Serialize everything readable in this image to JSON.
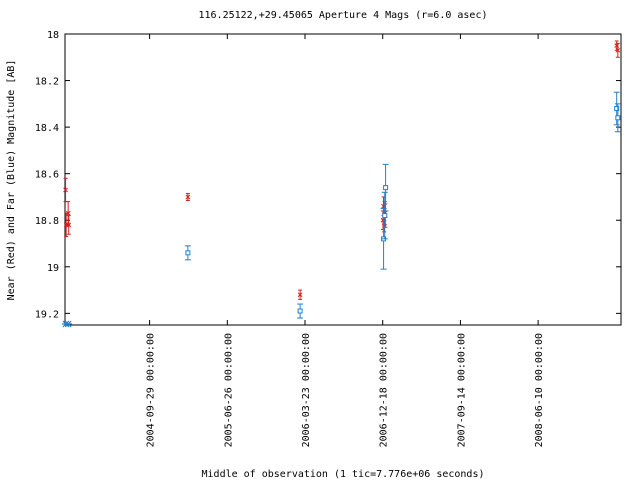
{
  "chart_data": {
    "type": "scatter",
    "title": "116.25122,+29.45065   Aperture 4 Mags (r=6.0 asec)",
    "xlabel": "Middle of observation (1 tic=7.776e+06 seconds)",
    "ylabel": "Near (Red) and Far (Blue) Magnitude [AB]",
    "ylim": [
      19.25,
      18.0
    ],
    "y_inverted": true,
    "yticks": [
      18,
      18.2,
      18.4,
      18.6,
      18.8,
      19,
      19.2
    ],
    "ytick_labels": [
      "18",
      "18.2",
      "18.4",
      "18.6",
      "18.8",
      "19",
      "19.2"
    ],
    "xlim": [
      "2003-12-10",
      "2009-03-25"
    ],
    "xticks": [
      "2004-09-29",
      "2005-06-26",
      "2006-03-23",
      "2006-12-18",
      "2007-09-14",
      "2008-06-10"
    ],
    "xtick_labels": [
      "2004-09-29 00:00:00",
      "2005-06-26 00:00:00",
      "2006-03-23 00:00:00",
      "2006-12-18 00:00:00",
      "2007-09-14 00:00:00",
      "2008-06-10 00:00:00"
    ],
    "grid": false,
    "colors": {
      "near": "#d42020",
      "far": "#2080d0",
      "farEdge": "#20a0a0"
    },
    "series": [
      {
        "key": "near",
        "marker": "x",
        "points": [
          {
            "x": "2003-12-12",
            "y": 18.67,
            "err": 0.05
          },
          {
            "x": "2003-12-14",
            "y": 18.82,
            "err": 0.05
          },
          {
            "x": "2003-12-21",
            "y": 18.77,
            "err": 0.05
          },
          {
            "x": "2003-12-23",
            "y": 18.82,
            "err": 0.04
          },
          {
            "x": "2005-02-09",
            "y": 18.7,
            "err": 0.015
          },
          {
            "x": "2006-03-06",
            "y": 19.12,
            "err": 0.02
          },
          {
            "x": "2006-12-19",
            "y": 18.8,
            "err": 0.04
          },
          {
            "x": "2006-12-21",
            "y": 18.74,
            "err": 0.04
          },
          {
            "x": "2006-12-23",
            "y": 18.81,
            "err": 0.04
          },
          {
            "x": "2006-12-25",
            "y": 18.77,
            "err": 0.05
          },
          {
            "x": "2006-12-27",
            "y": 18.78,
            "err": 0.05
          },
          {
            "x": "2009-03-10",
            "y": 18.05,
            "err": 0.02
          },
          {
            "x": "2009-03-14",
            "y": 18.07,
            "err": 0.03
          }
        ]
      },
      {
        "key": "far",
        "marker": "square",
        "points": [
          {
            "x": "2005-02-09",
            "y": 18.94,
            "err": 0.03
          },
          {
            "x": "2006-03-06",
            "y": 19.19,
            "err": 0.03
          },
          {
            "x": "2006-12-21",
            "y": 18.88,
            "err": 0.13
          },
          {
            "x": "2006-12-25",
            "y": 18.78,
            "err": 0.1
          },
          {
            "x": "2006-12-28",
            "y": 18.66,
            "err": 0.1
          },
          {
            "x": "2009-03-10",
            "y": 18.32,
            "err": 0.07
          },
          {
            "x": "2009-03-14",
            "y": 18.36,
            "err": 0.06
          }
        ]
      }
    ],
    "limit_markers": [
      {
        "x": "2003-12-13",
        "marker": "asterisk"
      },
      {
        "x": "2003-12-21",
        "marker": "asterisk"
      }
    ]
  }
}
